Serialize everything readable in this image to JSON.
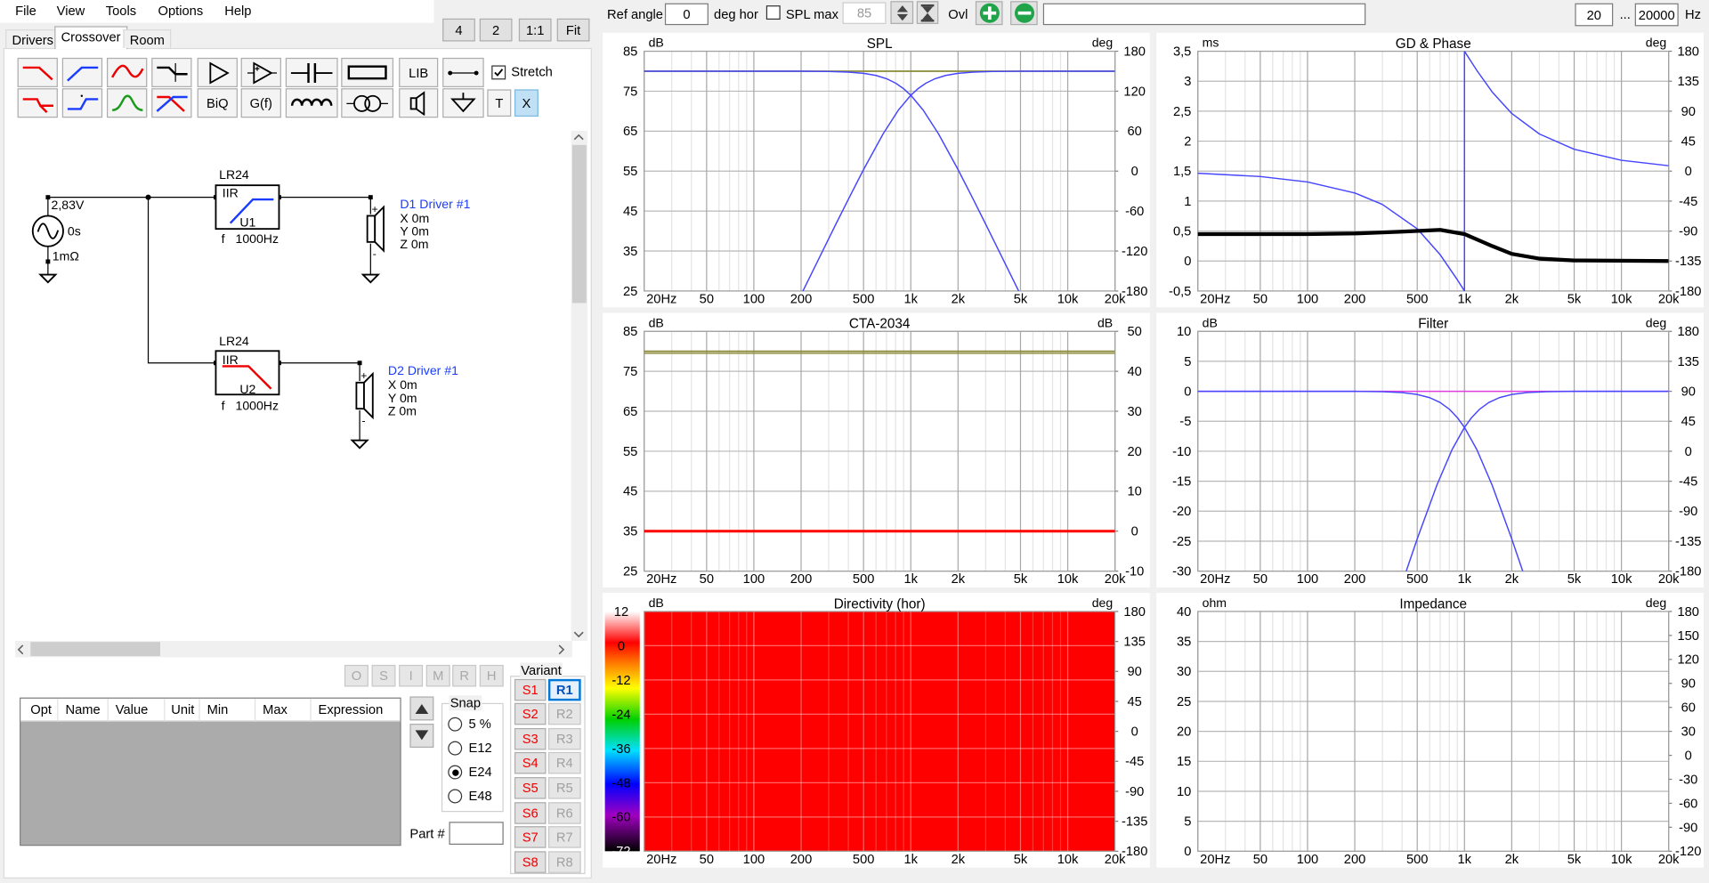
{
  "menu": [
    "File",
    "View",
    "Tools",
    "Options",
    "Help"
  ],
  "view_buttons": [
    "4",
    "2",
    "1:1",
    "Fit"
  ],
  "tabs": {
    "items": [
      "Drivers",
      "Crossover",
      "Room"
    ],
    "selected": 1
  },
  "toolbar": {
    "buttons": [
      "LIB",
      "BiQ",
      "G(f)",
      "T",
      "X"
    ],
    "stretch": {
      "label": "Stretch",
      "checked": true
    }
  },
  "schematic": {
    "source": {
      "voltage": "2,83V",
      "delay": "0s",
      "resistance": "1mΩ"
    },
    "filters": [
      {
        "name": "LR24",
        "kind": "IIR",
        "id": "U1",
        "param": "f",
        "value": "1000Hz"
      },
      {
        "name": "LR24",
        "kind": "IIR",
        "id": "U2",
        "param": "f",
        "value": "1000Hz"
      }
    ],
    "drivers": [
      {
        "name": "D1 Driver #1",
        "x": "X 0m",
        "y": "Y 0m",
        "z": "Z 0m"
      },
      {
        "name": "D2 Driver #1",
        "x": "X 0m",
        "y": "Y 0m",
        "z": "Z 0m"
      }
    ]
  },
  "opt_buttons": [
    "O",
    "S",
    "I",
    "M",
    "R",
    "H"
  ],
  "table": {
    "columns": [
      "Opt",
      "Name",
      "Value",
      "Unit",
      "Min",
      "Max",
      "Expression"
    ]
  },
  "snap": {
    "title": "Snap",
    "options": [
      "5 %",
      "E12",
      "E24",
      "E48"
    ],
    "selected": 2
  },
  "part_label": "Part #",
  "variant": {
    "title": "Variant",
    "s": [
      "S1",
      "S2",
      "S3",
      "S4",
      "S5",
      "S6",
      "S7",
      "S8"
    ],
    "r": [
      "R1",
      "R2",
      "R3",
      "R4",
      "R5",
      "R6",
      "R7",
      "R8"
    ],
    "active": 0
  },
  "top_bar": {
    "ref_angle_label": "Ref angle",
    "ref_angle": "0",
    "ref_angle_unit": "deg hor",
    "spl_max_label": "SPL max",
    "spl_max_checked": false,
    "spl_max": "85",
    "ovl_label": "Ovl",
    "freq_min": "20",
    "range_sep": "...",
    "freq_max": "20000",
    "freq_unit": "Hz"
  },
  "chart_data": [
    {
      "type": "line",
      "title": "SPL",
      "ylabel": "dB",
      "y2label": "deg",
      "xscale": "log",
      "xlim": [
        20,
        20000
      ],
      "xticks": [
        {
          "value": 20,
          "label": "20Hz"
        },
        50,
        100,
        200,
        500,
        {
          "value": 1000,
          "label": "1k"
        },
        {
          "value": 2000,
          "label": "2k"
        },
        {
          "value": 5000,
          "label": "5k"
        },
        {
          "value": 10000,
          "label": "10k"
        },
        {
          "value": 20000,
          "label": "20k"
        }
      ],
      "xminor": [
        30,
        40,
        60,
        70,
        80,
        90,
        300,
        400,
        600,
        700,
        800,
        900,
        3000,
        4000,
        6000,
        7000,
        8000,
        9000
      ],
      "ylim": [
        25,
        85
      ],
      "yticks": [
        85,
        75,
        65,
        55,
        45,
        35,
        25
      ],
      "y2lim": [
        -180,
        180
      ],
      "y2ticks": [
        180,
        120,
        60,
        0,
        -60,
        -120,
        -180
      ],
      "series": [
        {
          "color": "#8a8a3a",
          "width": 1.5,
          "x": [
            20,
            20000
          ],
          "values": [
            80,
            80
          ]
        },
        {
          "color": "#4646ff",
          "width": 1.2,
          "x": [
            20,
            100,
            200,
            300,
            400,
            500,
            600,
            700,
            800,
            900,
            1000,
            1200,
            1500,
            2000,
            2500,
            3000,
            4000,
            5000
          ],
          "values": [
            80,
            80,
            79.99,
            79.93,
            79.78,
            79.47,
            78.94,
            78.13,
            77.02,
            75.62,
            73.98,
            70.25,
            64.35,
            55.39,
            47.95,
            41.72,
            31.8,
            24.07
          ]
        },
        {
          "color": "#4646ff",
          "width": 1.2,
          "x": [
            200,
            250,
            333,
            400,
            500,
            667,
            833,
            1000,
            1111,
            1250,
            1429,
            1667,
            2000,
            2500,
            3333,
            5000,
            20000
          ],
          "values": [
            24.07,
            31.8,
            41.72,
            47.95,
            55.39,
            64.35,
            70.25,
            73.98,
            75.62,
            77.02,
            78.13,
            78.94,
            79.47,
            79.78,
            79.93,
            79.99,
            80
          ]
        }
      ]
    },
    {
      "type": "line",
      "title": "GD & Phase",
      "ylabel": "ms",
      "y2label": "deg",
      "xscale": "log",
      "xlim": [
        20,
        20000
      ],
      "xticks": [
        {
          "value": 20,
          "label": "20Hz"
        },
        50,
        100,
        200,
        500,
        {
          "value": 1000,
          "label": "1k"
        },
        {
          "value": 2000,
          "label": "2k"
        },
        {
          "value": 5000,
          "label": "5k"
        },
        {
          "value": 10000,
          "label": "10k"
        },
        {
          "value": 20000,
          "label": "20k"
        }
      ],
      "xminor": [
        30,
        40,
        60,
        70,
        80,
        90,
        300,
        400,
        600,
        700,
        800,
        900,
        3000,
        4000,
        6000,
        7000,
        8000,
        9000
      ],
      "ylim": [
        -0.5,
        3.5
      ],
      "yticks": [
        {
          "value": 3.5,
          "label": "3,5"
        },
        3,
        {
          "value": 2.5,
          "label": "2,5"
        },
        2,
        {
          "value": 1.5,
          "label": "1,5"
        },
        1,
        {
          "value": 0.5,
          "label": "0,5"
        },
        0,
        {
          "value": -0.5,
          "label": "-0,5"
        }
      ],
      "y2lim": [
        -180,
        180
      ],
      "y2ticks": [
        180,
        135,
        90,
        45,
        0,
        -45,
        -90,
        -135,
        -180
      ],
      "series": [
        {
          "color": "#4646ff",
          "width": 1.2,
          "axis": "y2",
          "x": [
            20,
            50,
            100,
            200,
            300,
            500,
            700,
            900,
            1000,
            1000,
            1200,
            1500,
            2000,
            3000,
            5000,
            10000,
            20000
          ],
          "values": [
            -3.2,
            -8.1,
            -16.3,
            -32.8,
            -50,
            -86.6,
            -125.5,
            -163,
            -180,
            180,
            151,
            119,
            86.6,
            55.8,
            32.8,
            16.3,
            8.1
          ]
        },
        {
          "color": "#000000",
          "width": 3.5,
          "x": [
            20,
            100,
            200,
            400,
            700,
            1000,
            1500,
            2000,
            3000,
            5000,
            20000
          ],
          "values": [
            0.45,
            0.45,
            0.46,
            0.49,
            0.52,
            0.45,
            0.25,
            0.12,
            0.04,
            0.01,
            0
          ]
        }
      ]
    },
    {
      "type": "line",
      "title": "CTA-2034",
      "ylabel": "dB",
      "y2label": "dB",
      "xscale": "log",
      "xlim": [
        20,
        20000
      ],
      "xticks": [
        {
          "value": 20,
          "label": "20Hz"
        },
        50,
        100,
        200,
        500,
        {
          "value": 1000,
          "label": "1k"
        },
        {
          "value": 2000,
          "label": "2k"
        },
        {
          "value": 5000,
          "label": "5k"
        },
        {
          "value": 10000,
          "label": "10k"
        },
        {
          "value": 20000,
          "label": "20k"
        }
      ],
      "xminor": [
        30,
        40,
        60,
        70,
        80,
        90,
        300,
        400,
        600,
        700,
        800,
        900,
        3000,
        4000,
        6000,
        7000,
        8000,
        9000
      ],
      "ylim": [
        25,
        85
      ],
      "yticks": [
        85,
        75,
        65,
        55,
        45,
        35,
        25
      ],
      "y2lim": [
        -10,
        50
      ],
      "y2ticks": [
        50,
        40,
        30,
        20,
        10,
        0,
        -10
      ],
      "series": [
        {
          "color": "#8a8a3a",
          "width": 1.5,
          "x": [
            20,
            20000
          ],
          "values": [
            80,
            80
          ]
        },
        {
          "color": "#8a8a3a",
          "width": 1.2,
          "x": [
            20,
            20000
          ],
          "values": [
            79.5,
            79.5
          ]
        },
        {
          "color": "#ff0000",
          "width": 2.5,
          "axis": "y2",
          "x": [
            20,
            20000
          ],
          "values": [
            0,
            0
          ]
        }
      ]
    },
    {
      "type": "line",
      "title": "Filter",
      "ylabel": "dB",
      "y2label": "deg",
      "xscale": "log",
      "xlim": [
        20,
        20000
      ],
      "xticks": [
        {
          "value": 20,
          "label": "20Hz"
        },
        50,
        100,
        200,
        500,
        {
          "value": 1000,
          "label": "1k"
        },
        {
          "value": 2000,
          "label": "2k"
        },
        {
          "value": 5000,
          "label": "5k"
        },
        {
          "value": 10000,
          "label": "10k"
        },
        {
          "value": 20000,
          "label": "20k"
        }
      ],
      "xminor": [
        30,
        40,
        60,
        70,
        80,
        90,
        300,
        400,
        600,
        700,
        800,
        900,
        3000,
        4000,
        6000,
        7000,
        8000,
        9000
      ],
      "ylim": [
        -30,
        10
      ],
      "yticks": [
        10,
        5,
        0,
        -5,
        -10,
        -15,
        -20,
        -25,
        -30
      ],
      "y2lim": [
        -180,
        180
      ],
      "y2ticks": [
        180,
        135,
        90,
        45,
        0,
        -45,
        -90,
        -135,
        -180
      ],
      "series": [
        {
          "color": "#e040e0",
          "width": 1.2,
          "x": [
            20,
            20000
          ],
          "values": [
            0,
            0
          ]
        },
        {
          "color": "#4646ff",
          "width": 1.2,
          "x": [
            20,
            100,
            200,
            300,
            400,
            500,
            600,
            700,
            800,
            900,
            1000,
            1200,
            1500,
            2000,
            2500
          ],
          "values": [
            0,
            0,
            -0.01,
            -0.07,
            -0.22,
            -0.53,
            -1.06,
            -1.87,
            -2.98,
            -4.38,
            -6.02,
            -9.75,
            -15.65,
            -24.61,
            -32.06
          ]
        },
        {
          "color": "#4646ff",
          "width": 1.2,
          "x": [
            400,
            500,
            667,
            833,
            1000,
            1111,
            1250,
            1429,
            1667,
            2000,
            2500,
            3333,
            5000,
            20000
          ],
          "values": [
            -32.06,
            -24.61,
            -15.65,
            -9.75,
            -6.02,
            -4.38,
            -2.98,
            -1.87,
            -1.06,
            -0.53,
            -0.22,
            -0.07,
            -0.01,
            0
          ]
        }
      ]
    },
    {
      "type": "heatmap",
      "title": "Directivity (hor)",
      "ylabel": "dB",
      "y2label": "deg",
      "xscale": "log",
      "xlim": [
        20,
        20000
      ],
      "color": "#ff0000",
      "xticks": [
        {
          "value": 20,
          "label": "20Hz"
        },
        50,
        100,
        200,
        500,
        {
          "value": 1000,
          "label": "1k"
        },
        {
          "value": 2000,
          "label": "2k"
        },
        {
          "value": 5000,
          "label": "5k"
        },
        {
          "value": 10000,
          "label": "10k"
        },
        {
          "value": 20000,
          "label": "20k"
        }
      ],
      "xminor": [
        30,
        40,
        60,
        70,
        80,
        90,
        300,
        400,
        600,
        700,
        800,
        900,
        3000,
        4000,
        6000,
        7000,
        8000,
        9000
      ],
      "ylim": [
        -72,
        12
      ],
      "yticks": [
        12,
        0,
        -12,
        -24,
        -36,
        -48,
        -60,
        -72
      ],
      "y2lim": [
        -180,
        180
      ],
      "y2ticks": [
        180,
        135,
        90,
        45,
        0,
        -45,
        -90,
        -135,
        -180
      ],
      "series": []
    },
    {
      "type": "line",
      "title": "Impedance",
      "ylabel": "ohm",
      "y2label": "deg",
      "xscale": "log",
      "xlim": [
        20,
        20000
      ],
      "xticks": [
        {
          "value": 20,
          "label": "20Hz"
        },
        50,
        100,
        200,
        500,
        {
          "value": 1000,
          "label": "1k"
        },
        {
          "value": 2000,
          "label": "2k"
        },
        {
          "value": 5000,
          "label": "5k"
        },
        {
          "value": 10000,
          "label": "10k"
        },
        {
          "value": 20000,
          "label": "20k"
        }
      ],
      "xminor": [
        30,
        40,
        60,
        70,
        80,
        90,
        300,
        400,
        600,
        700,
        800,
        900,
        3000,
        4000,
        6000,
        7000,
        8000,
        9000
      ],
      "ylim": [
        0,
        40
      ],
      "yticks": [
        40,
        35,
        30,
        25,
        20,
        15,
        10,
        5,
        0
      ],
      "y2lim": [
        -120,
        180
      ],
      "y2ticks": [
        180,
        150,
        120,
        90,
        60,
        30,
        0,
        -30,
        -60,
        -90,
        -120
      ],
      "series": []
    }
  ]
}
